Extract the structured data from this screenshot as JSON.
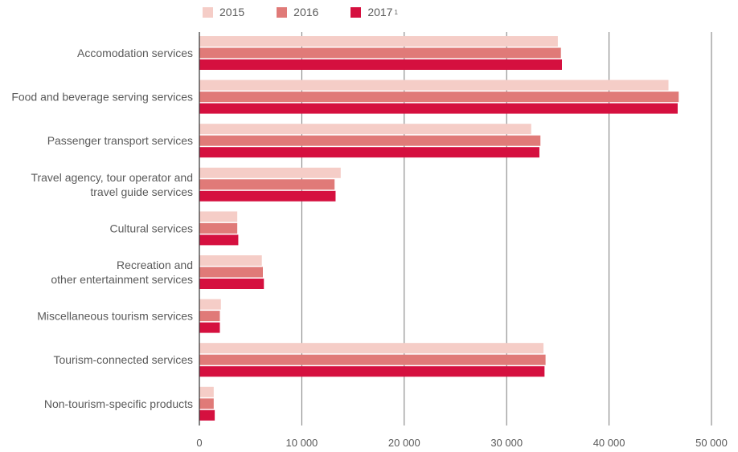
{
  "chart_data": {
    "type": "bar",
    "orientation": "horizontal",
    "categories": [
      [
        "Accomodation services"
      ],
      [
        "Food and beverage serving services"
      ],
      [
        "Passenger transport services"
      ],
      [
        "Travel agency, tour operator and",
        "travel guide services"
      ],
      [
        "Cultural services"
      ],
      [
        "Recreation and",
        "other entertainment services"
      ],
      [
        "Miscellaneous tourism services"
      ],
      [
        "Tourism-connected services"
      ],
      [
        "Non-tourism-specific products"
      ]
    ],
    "series": [
      {
        "name": "2015",
        "color": "#f5cdc7",
        "values": [
          35000,
          45800,
          32400,
          13800,
          3700,
          6100,
          2100,
          33600,
          1400
        ]
      },
      {
        "name": "2016",
        "color": "#e07a78",
        "values": [
          35300,
          46800,
          33300,
          13200,
          3700,
          6200,
          2000,
          33800,
          1400
        ]
      },
      {
        "name": "2017",
        "footnote": "1",
        "color": "#d5103f",
        "values": [
          35400,
          46700,
          33200,
          13300,
          3800,
          6300,
          2000,
          33700,
          1500
        ]
      }
    ],
    "x_ticks": [
      "0",
      "10 000",
      "20 000",
      "30 000",
      "40 000",
      "50 000"
    ],
    "xlim": [
      0,
      50000
    ],
    "grid": true,
    "legend_position": "top"
  }
}
